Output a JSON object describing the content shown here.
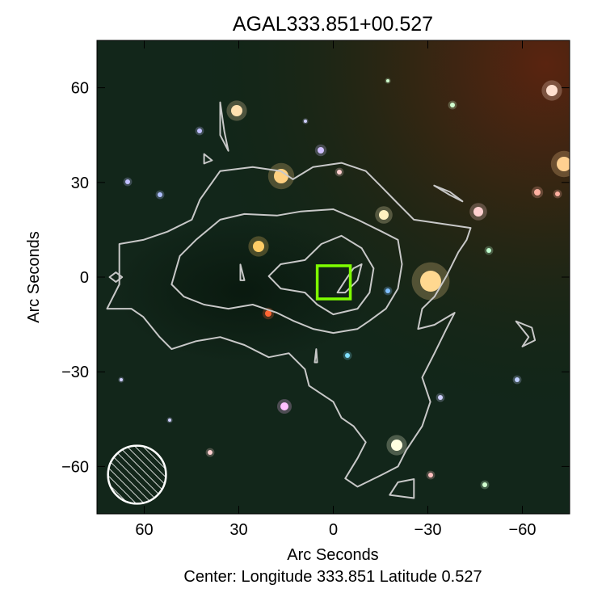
{
  "chart_data": {
    "type": "contour",
    "title": "AGAL333.851+00.527",
    "xlabel": "Arc Seconds",
    "ylabel": "Arc Seconds",
    "footer": "Center:  Longitude 333.851 Latitude 0.527",
    "xlim": [
      75,
      -75
    ],
    "ylim": [
      -75,
      75
    ],
    "xticks": [
      60,
      30,
      0,
      -30,
      -60
    ],
    "yticks": [
      60,
      30,
      0,
      -30,
      -60
    ],
    "xtick_labels": [
      "60",
      "30",
      "0",
      "−30",
      "−60"
    ],
    "ytick_labels": [
      "60",
      "30",
      "0",
      "−30",
      "−60"
    ],
    "contour_color": "#c8c8c8",
    "marker_color": "#7fff00",
    "background": "three-color infrared image (dark green with reddish upper-right)",
    "contours": [
      [
        [
          67.9,
          10.5
        ],
        [
          60.3,
          11.8
        ],
        [
          52.6,
          14.4
        ],
        [
          44.9,
          18.2
        ],
        [
          42.3,
          24.6
        ],
        [
          35.9,
          33.6
        ],
        [
          25.6,
          34.9
        ],
        [
          16.7,
          33.6
        ],
        [
          12.8,
          31.0
        ],
        [
          6.4,
          34.9
        ],
        [
          -2.6,
          36.2
        ],
        [
          -10.3,
          33.6
        ],
        [
          -15.4,
          28.5
        ],
        [
          -20.5,
          23.3
        ],
        [
          -25.6,
          18.2
        ],
        [
          -34.6,
          16.9
        ],
        [
          -43.6,
          15.6
        ],
        [
          -42.3,
          11.8
        ],
        [
          -39.7,
          7.9
        ],
        [
          -35.9,
          0.3
        ],
        [
          -32.1,
          -6.2
        ],
        [
          -28.2,
          -10.0
        ],
        [
          -26.9,
          -16.4
        ],
        [
          -32.1,
          -15.1
        ],
        [
          -38.5,
          -11.3
        ],
        [
          -35.9,
          -16.4
        ],
        [
          -32.1,
          -24.1
        ],
        [
          -28.2,
          -31.8
        ],
        [
          -30.8,
          -39.5
        ],
        [
          -28.2,
          -47.2
        ],
        [
          -23.1,
          -54.9
        ],
        [
          -20.5,
          -60.0
        ],
        [
          -15.4,
          -62.6
        ],
        [
          -7.7,
          -66.4
        ],
        [
          -3.8,
          -63.8
        ],
        [
          -7.7,
          -57.4
        ],
        [
          -10.3,
          -52.3
        ],
        [
          -6.4,
          -47.2
        ],
        [
          -2.6,
          -44.6
        ],
        [
          0,
          -39.5
        ],
        [
          7.7,
          -34.4
        ],
        [
          9.0,
          -29.2
        ],
        [
          14.1,
          -24.1
        ],
        [
          20.5,
          -25.4
        ],
        [
          28.2,
          -21.5
        ],
        [
          35.9,
          -19.0
        ],
        [
          43.6,
          -20.3
        ],
        [
          51.3,
          -22.8
        ],
        [
          55.1,
          -19.0
        ],
        [
          60.3,
          -12.6
        ],
        [
          64.1,
          -10.0
        ],
        [
          71.8,
          -10.0
        ],
        [
          67.9,
          -2.3
        ]
      ],
      [
        [
          51.3,
          -2.3
        ],
        [
          48.7,
          6.7
        ],
        [
          43.6,
          11.8
        ],
        [
          35.9,
          18.2
        ],
        [
          28.2,
          20.0
        ],
        [
          17.9,
          19.5
        ],
        [
          10.3,
          20.8
        ],
        [
          0,
          21.5
        ],
        [
          -7.7,
          18.2
        ],
        [
          -15.4,
          14.4
        ],
        [
          -20.5,
          11.8
        ],
        [
          -21.8,
          4.1
        ],
        [
          -20.5,
          -3.6
        ],
        [
          -16.7,
          -10.0
        ],
        [
          -11.5,
          -13.8
        ],
        [
          -7.7,
          -16.4
        ],
        [
          0,
          -17.7
        ],
        [
          6.4,
          -16.4
        ],
        [
          12.8,
          -13.8
        ],
        [
          17.9,
          -11.3
        ],
        [
          25.6,
          -8.7
        ],
        [
          33.3,
          -10.0
        ],
        [
          41.0,
          -8.7
        ],
        [
          47.4,
          -6.2
        ]
      ],
      [
        [
          20.5,
          0.3
        ],
        [
          16.7,
          4.1
        ],
        [
          9.0,
          5.4
        ],
        [
          3.8,
          10.5
        ],
        [
          -2.6,
          13.1
        ],
        [
          -9.0,
          9.2
        ],
        [
          -12.8,
          2.8
        ],
        [
          -11.5,
          -4.9
        ],
        [
          -7.7,
          -10.0
        ],
        [
          0,
          -11.8
        ],
        [
          5.1,
          -8.7
        ],
        [
          9.0,
          -4.9
        ],
        [
          16.7,
          -3.6
        ]
      ],
      [
        [
          -6.4,
          2.8
        ],
        [
          -9.0,
          4.1
        ],
        [
          -7.7,
          -1.0
        ],
        [
          -3.8,
          -4.9
        ],
        [
          -1.3,
          -4.9
        ],
        [
          -3.8,
          -1.0
        ]
      ],
      [
        [
          35.9,
          55.4
        ],
        [
          34.6,
          46.2
        ],
        [
          33.3,
          40.0
        ],
        [
          35.9,
          45.0
        ]
      ],
      [
        [
          -37,
          27
        ],
        [
          -32,
          29
        ],
        [
          -37,
          26
        ],
        [
          -41,
          24
        ]
      ],
      [
        [
          -58,
          -14
        ],
        [
          -62,
          -19
        ],
        [
          -60,
          -22
        ],
        [
          -64,
          -20
        ],
        [
          -63,
          -16
        ]
      ],
      [
        [
          69,
          1.5
        ],
        [
          71,
          0
        ],
        [
          69,
          -1.5
        ],
        [
          67,
          0
        ]
      ],
      [
        [
          -20.5,
          -65
        ],
        [
          -25.6,
          -64
        ],
        [
          -25.6,
          -70
        ],
        [
          -17.9,
          -69
        ]
      ],
      [
        [
          29.5,
          4
        ],
        [
          28.2,
          -1
        ],
        [
          29.5,
          -1
        ]
      ],
      [
        [
          5.4,
          -22.8
        ],
        [
          5.1,
          -27
        ],
        [
          5.9,
          -27
        ]
      ],
      [
        [
          41,
          39
        ],
        [
          38.5,
          37
        ],
        [
          41,
          36
        ]
      ]
    ],
    "marker_box": {
      "x": [
        5.1,
        -5.4
      ],
      "y": [
        3.6,
        -6.9
      ]
    },
    "beam": {
      "x": 62.3,
      "y": -62.6,
      "radius": 9.2
    }
  }
}
